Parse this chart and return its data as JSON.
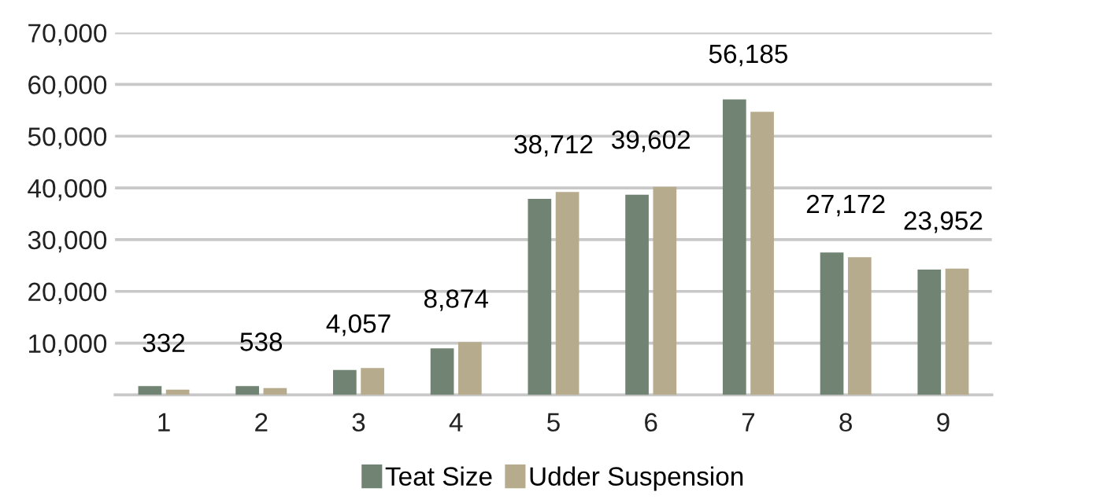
{
  "chart_data": {
    "type": "bar",
    "categories": [
      "1",
      "2",
      "3",
      "4",
      "5",
      "6",
      "7",
      "8",
      "9"
    ],
    "series": [
      {
        "name": "Teat Size",
        "color": "#718473",
        "values": [
          1700,
          1700,
          4800,
          9000,
          37900,
          38700,
          57100,
          27500,
          24200
        ]
      },
      {
        "name": "Udder Suspension",
        "color": "#b7ab8d",
        "values": [
          1000,
          1300,
          5200,
          10200,
          39200,
          40200,
          54700,
          26600,
          24400
        ]
      }
    ],
    "annotations": [
      {
        "text": "332",
        "x": "1",
        "y": 332
      },
      {
        "text": "538",
        "x": "2",
        "y": 538
      },
      {
        "text": "4,057",
        "x": "3",
        "y": 4057
      },
      {
        "text": "8,874",
        "x": "4",
        "y": 8874
      },
      {
        "text": "38,712",
        "x": "5",
        "y": 38712
      },
      {
        "text": "39,602",
        "x": "6",
        "y": 39602
      },
      {
        "text": "56,185",
        "x": "7",
        "y": 56185
      },
      {
        "text": "27,172",
        "x": "8",
        "y": 27172
      },
      {
        "text": "23,952",
        "x": "9",
        "y": 23952
      }
    ],
    "ylim": [
      0,
      70000
    ],
    "yticks": [
      {
        "value": 10000,
        "label": "10,000"
      },
      {
        "value": 20000,
        "label": "20,000"
      },
      {
        "value": 30000,
        "label": "30,000"
      },
      {
        "value": 40000,
        "label": "40,000"
      },
      {
        "value": 50000,
        "label": "50,000"
      },
      {
        "value": 60000,
        "label": "60,000"
      },
      {
        "value": 70000,
        "label": "70,000"
      }
    ],
    "grid": "y",
    "legend": "bottom"
  }
}
